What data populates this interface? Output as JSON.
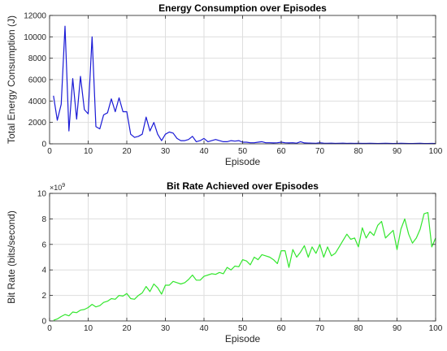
{
  "chart_data": [
    {
      "type": "line",
      "title": "Energy Consumption over Episodes",
      "xlabel": "Episode",
      "ylabel": "Total Energy Consumption (J)",
      "xlim": [
        0,
        100
      ],
      "ylim": [
        0,
        12000
      ],
      "xticks": [
        "0",
        "10",
        "20",
        "30",
        "40",
        "50",
        "60",
        "70",
        "80",
        "90",
        "100"
      ],
      "yticks": [
        "0",
        "2000",
        "4000",
        "6000",
        "8000",
        "10000",
        "12000"
      ],
      "grid": true,
      "color": "#1a1ad6",
      "x": [
        1,
        2,
        3,
        4,
        5,
        6,
        7,
        8,
        9,
        10,
        11,
        12,
        13,
        14,
        15,
        16,
        17,
        18,
        19,
        20,
        21,
        22,
        23,
        24,
        25,
        26,
        27,
        28,
        29,
        30,
        31,
        32,
        33,
        34,
        35,
        36,
        37,
        38,
        39,
        40,
        41,
        42,
        43,
        44,
        45,
        46,
        47,
        48,
        49,
        50,
        51,
        52,
        53,
        54,
        55,
        56,
        57,
        58,
        59,
        60,
        61,
        62,
        63,
        64,
        65,
        66,
        67,
        68,
        69,
        70,
        71,
        72,
        73,
        74,
        75,
        76,
        77,
        78,
        79,
        80,
        81,
        82,
        83,
        84,
        85,
        86,
        87,
        88,
        89,
        90,
        91,
        92,
        93,
        94,
        95,
        96,
        97,
        98,
        99,
        100
      ],
      "y": [
        4500,
        2200,
        3700,
        11000,
        1200,
        6100,
        2300,
        6300,
        3200,
        2800,
        10000,
        1600,
        1400,
        2700,
        2900,
        4200,
        3000,
        4300,
        3000,
        3000,
        900,
        600,
        700,
        900,
        2500,
        1200,
        2000,
        900,
        300,
        900,
        1100,
        1000,
        500,
        300,
        300,
        400,
        700,
        200,
        300,
        500,
        200,
        300,
        400,
        300,
        200,
        200,
        300,
        250,
        300,
        150,
        150,
        100,
        100,
        150,
        200,
        100,
        100,
        80,
        100,
        150,
        100,
        80,
        100,
        60,
        200,
        80,
        70,
        60,
        50,
        100,
        60,
        50,
        60,
        40,
        50,
        60,
        40,
        50,
        40,
        50,
        40,
        40,
        50,
        40,
        30,
        40,
        50,
        40,
        30,
        40,
        50,
        40,
        30,
        30,
        40,
        50,
        30,
        30,
        40,
        30
      ]
    },
    {
      "type": "line",
      "title": "Bit Rate Achieved over Episodes",
      "xlabel": "Episode",
      "ylabel": "Bit Rate (bits/second)",
      "exponent_label": "×10",
      "exponent_power": "9",
      "xlim": [
        0,
        100
      ],
      "ylim": [
        0,
        10
      ],
      "xticks": [
        "0",
        "10",
        "20",
        "30",
        "40",
        "50",
        "60",
        "70",
        "80",
        "90",
        "100"
      ],
      "yticks": [
        "0",
        "2",
        "4",
        "6",
        "8",
        "10"
      ],
      "grid": true,
      "color": "#33e62e",
      "x": [
        1,
        2,
        3,
        4,
        5,
        6,
        7,
        8,
        9,
        10,
        11,
        12,
        13,
        14,
        15,
        16,
        17,
        18,
        19,
        20,
        21,
        22,
        23,
        24,
        25,
        26,
        27,
        28,
        29,
        30,
        31,
        32,
        33,
        34,
        35,
        36,
        37,
        38,
        39,
        40,
        41,
        42,
        43,
        44,
        45,
        46,
        47,
        48,
        49,
        50,
        51,
        52,
        53,
        54,
        55,
        56,
        57,
        58,
        59,
        60,
        61,
        62,
        63,
        64,
        65,
        66,
        67,
        68,
        69,
        70,
        71,
        72,
        73,
        74,
        75,
        76,
        77,
        78,
        79,
        80,
        81,
        82,
        83,
        84,
        85,
        86,
        87,
        88,
        89,
        90,
        91,
        92,
        93,
        94,
        95,
        96,
        97,
        98,
        99,
        100
      ],
      "y": [
        0.05,
        0.15,
        0.35,
        0.5,
        0.4,
        0.7,
        0.65,
        0.85,
        0.9,
        1.05,
        1.3,
        1.1,
        1.2,
        1.45,
        1.55,
        1.75,
        1.7,
        2.0,
        1.95,
        2.15,
        1.75,
        1.7,
        2.0,
        2.2,
        2.7,
        2.3,
        2.9,
        2.6,
        2.1,
        2.8,
        2.8,
        3.1,
        3.0,
        2.9,
        3.0,
        3.25,
        3.6,
        3.2,
        3.2,
        3.5,
        3.6,
        3.7,
        3.65,
        3.8,
        3.7,
        4.2,
        4.0,
        4.3,
        4.25,
        4.8,
        4.7,
        4.4,
        5.0,
        4.8,
        5.2,
        5.1,
        5.0,
        4.8,
        4.5,
        5.5,
        5.5,
        4.2,
        5.6,
        5.0,
        5.4,
        5.9,
        5.0,
        5.8,
        5.3,
        6.0,
        5.0,
        5.8,
        5.1,
        5.3,
        5.8,
        6.3,
        6.8,
        6.4,
        6.5,
        5.8,
        7.3,
        6.5,
        7.0,
        6.7,
        7.5,
        7.8,
        6.5,
        6.8,
        7.1,
        5.6,
        7.2,
        8.0,
        6.8,
        6.1,
        6.5,
        7.2,
        8.4,
        8.5,
        5.8,
        6.5
      ]
    }
  ]
}
